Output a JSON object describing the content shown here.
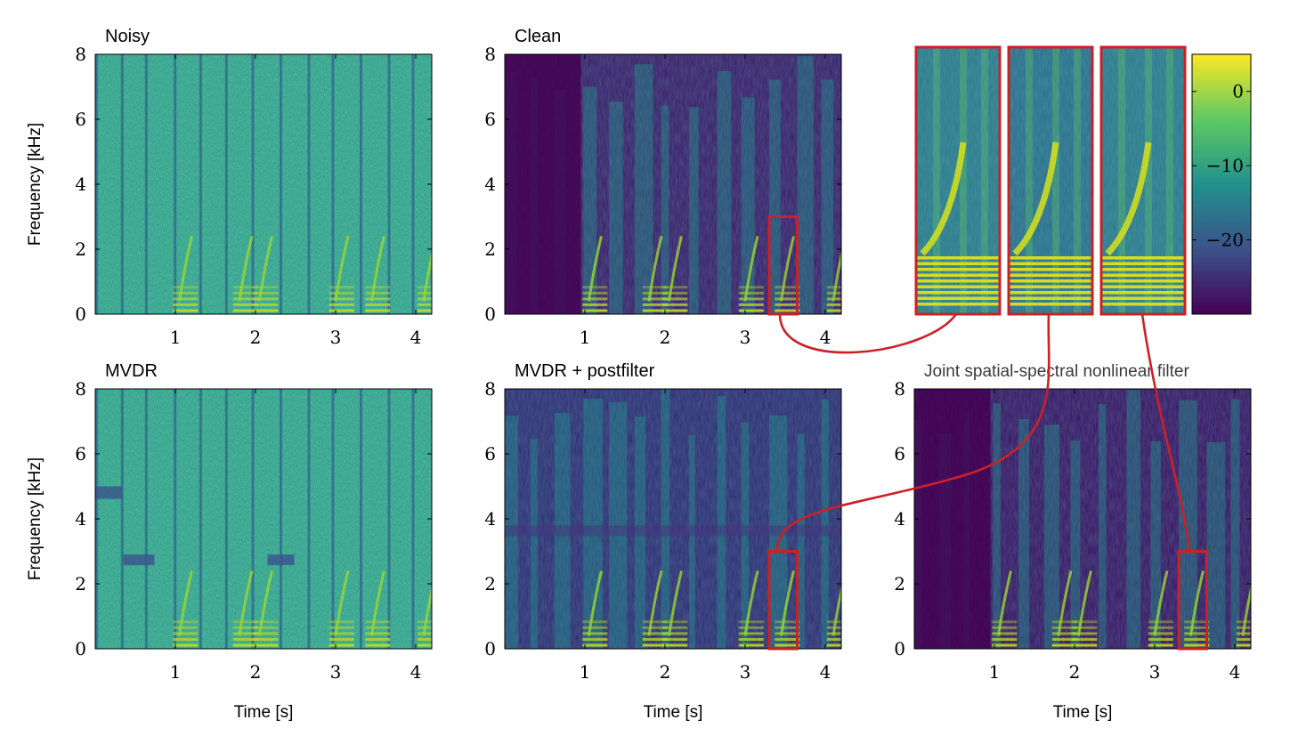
{
  "chart_data": [
    {
      "type": "heatmap",
      "title": "Noisy",
      "ylabel": "Frequency [kHz]",
      "xlabel": "",
      "xlim": [
        0,
        4.2
      ],
      "ylim": [
        0,
        8
      ],
      "xticks": [
        1,
        2,
        3,
        4
      ],
      "yticks": [
        0,
        2,
        4,
        6,
        8
      ]
    },
    {
      "type": "heatmap",
      "title": "Clean",
      "ylabel": "",
      "xlabel": "",
      "xlim": [
        0,
        4.2
      ],
      "ylim": [
        0,
        8
      ],
      "xticks": [
        1,
        2,
        3,
        4
      ],
      "yticks": [
        0,
        2,
        4,
        6,
        8
      ]
    },
    {
      "type": "heatmap",
      "title": "MVDR",
      "ylabel": "Frequency [kHz]",
      "xlabel": "Time [s]",
      "xlim": [
        0,
        4.2
      ],
      "ylim": [
        0,
        8
      ],
      "xticks": [
        1,
        2,
        3,
        4
      ],
      "yticks": [
        0,
        2,
        4,
        6,
        8
      ]
    },
    {
      "type": "heatmap",
      "title": "MVDR + postfilter",
      "ylabel": "",
      "xlabel": "Time [s]",
      "xlim": [
        0,
        4.2
      ],
      "ylim": [
        0,
        8
      ],
      "xticks": [
        1,
        2,
        3,
        4
      ],
      "yticks": [
        0,
        2,
        4,
        6,
        8
      ]
    },
    {
      "type": "heatmap",
      "title": "Joint spatial-spectral nonlinear filter",
      "ylabel": "",
      "xlabel": "Time [s]",
      "xlim": [
        0,
        4.2
      ],
      "ylim": [
        0,
        8
      ],
      "xticks": [
        1,
        2,
        3,
        4
      ],
      "yticks": [
        0,
        2,
        4,
        6,
        8
      ]
    }
  ],
  "zoom_region": {
    "x": [
      3.3,
      3.65
    ],
    "y": [
      0,
      3
    ]
  },
  "colorbar": {
    "ticks": [
      0,
      -10,
      -20
    ],
    "range": [
      -30,
      5
    ],
    "colors": [
      "#440154",
      "#3b528b",
      "#21918c",
      "#5ec962",
      "#fde725"
    ]
  },
  "highlight_color": "#cc2027"
}
